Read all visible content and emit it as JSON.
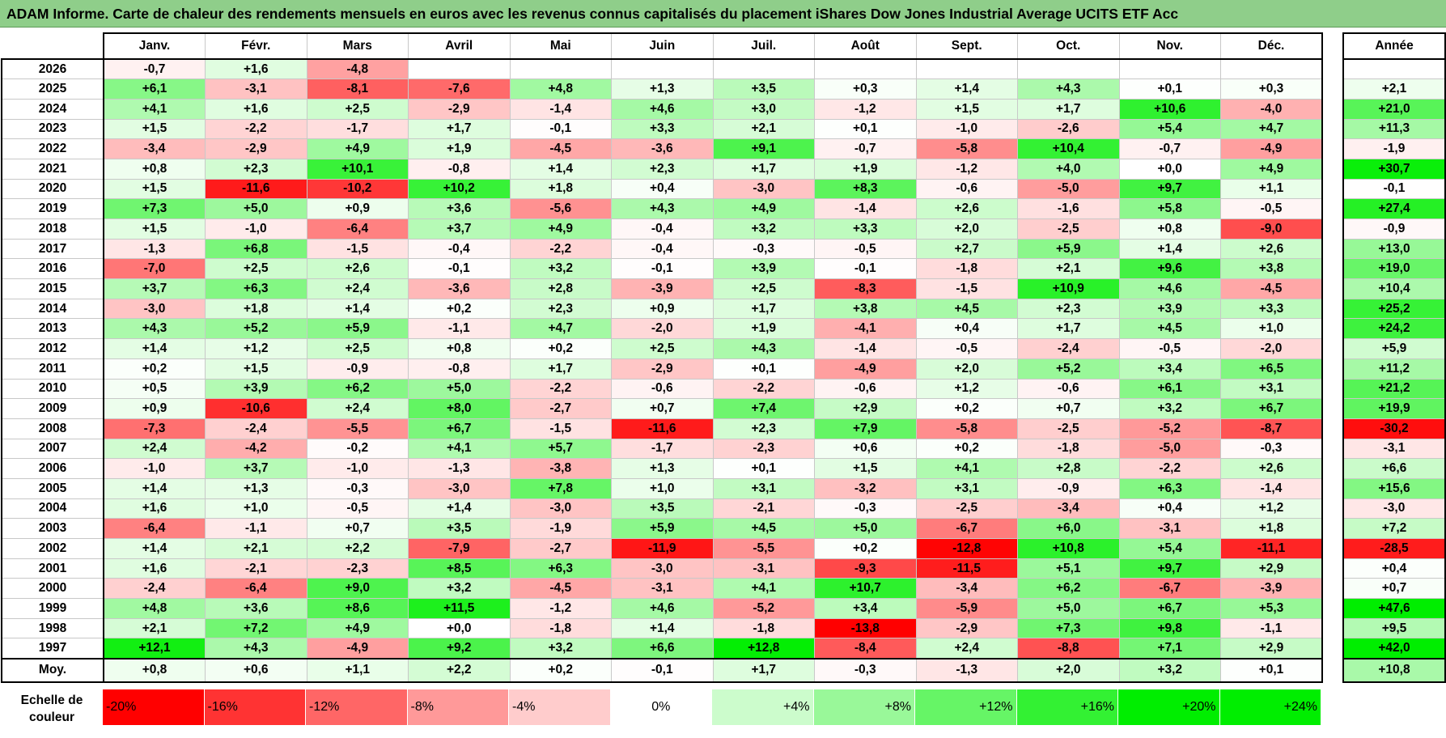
{
  "title": "ADAM Informe. Carte de chaleur des rendements mensuels en euros avec les revenus connus capitalisés du placement iShares Dow Jones Industrial Average UCITS ETF Acc",
  "colors": {
    "title_bg": "#8fce8a",
    "negative_max": "#ff0000",
    "zero": "#ffffff",
    "positive_max": "#00ee00"
  },
  "chart_data": {
    "type": "heatmap",
    "title": "ADAM Informe. Carte de chaleur des rendements mensuels en euros avec les revenus connus capitalisés du placement iShares Dow Jones Industrial Average UCITS ETF Acc",
    "columns": [
      "Janv.",
      "Févr.",
      "Mars",
      "Avril",
      "Mai",
      "Juin",
      "Juil.",
      "Août",
      "Sept.",
      "Oct.",
      "Nov.",
      "Déc."
    ],
    "year_column_label": "Année",
    "rows": [
      {
        "year": "2026",
        "months": [
          "-0,7",
          "+1,6",
          "-4,8",
          "",
          "",
          "",
          "",
          "",
          "",
          "",
          "",
          ""
        ],
        "annual": ""
      },
      {
        "year": "2025",
        "months": [
          "+6,1",
          "-3,1",
          "-8,1",
          "-7,6",
          "+4,8",
          "+1,3",
          "+3,5",
          "+0,3",
          "+1,4",
          "+4,3",
          "+0,1",
          "+0,3"
        ],
        "annual": "+2,1"
      },
      {
        "year": "2024",
        "months": [
          "+4,1",
          "+1,6",
          "+2,5",
          "-2,9",
          "-1,4",
          "+4,6",
          "+3,0",
          "-1,2",
          "+1,5",
          "+1,7",
          "+10,6",
          "-4,0"
        ],
        "annual": "+21,0"
      },
      {
        "year": "2023",
        "months": [
          "+1,5",
          "-2,2",
          "-1,7",
          "+1,7",
          "-0,1",
          "+3,3",
          "+2,1",
          "+0,1",
          "-1,0",
          "-2,6",
          "+5,4",
          "+4,7"
        ],
        "annual": "+11,3"
      },
      {
        "year": "2022",
        "months": [
          "-3,4",
          "-2,9",
          "+4,9",
          "+1,9",
          "-4,5",
          "-3,6",
          "+9,1",
          "-0,7",
          "-5,8",
          "+10,4",
          "-0,7",
          "-4,9"
        ],
        "annual": "-1,9"
      },
      {
        "year": "2021",
        "months": [
          "+0,8",
          "+2,3",
          "+10,1",
          "-0,8",
          "+1,4",
          "+2,3",
          "+1,7",
          "+1,9",
          "-1,2",
          "+4,0",
          "+0,0",
          "+4,9"
        ],
        "annual": "+30,7"
      },
      {
        "year": "2020",
        "months": [
          "+1,5",
          "-11,6",
          "-10,2",
          "+10,2",
          "+1,8",
          "+0,4",
          "-3,0",
          "+8,3",
          "-0,6",
          "-5,0",
          "+9,7",
          "+1,1"
        ],
        "annual": "-0,1"
      },
      {
        "year": "2019",
        "months": [
          "+7,3",
          "+5,0",
          "+0,9",
          "+3,6",
          "-5,6",
          "+4,3",
          "+4,9",
          "-1,4",
          "+2,6",
          "-1,6",
          "+5,8",
          "-0,5"
        ],
        "annual": "+27,4"
      },
      {
        "year": "2018",
        "months": [
          "+1,5",
          "-1,0",
          "-6,4",
          "+3,7",
          "+4,9",
          "-0,4",
          "+3,2",
          "+3,3",
          "+2,0",
          "-2,5",
          "+0,8",
          "-9,0"
        ],
        "annual": "-0,9"
      },
      {
        "year": "2017",
        "months": [
          "-1,3",
          "+6,8",
          "-1,5",
          "-0,4",
          "-2,2",
          "-0,4",
          "-0,3",
          "-0,5",
          "+2,7",
          "+5,9",
          "+1,4",
          "+2,6"
        ],
        "annual": "+13,0"
      },
      {
        "year": "2016",
        "months": [
          "-7,0",
          "+2,5",
          "+2,6",
          "-0,1",
          "+3,2",
          "-0,1",
          "+3,9",
          "-0,1",
          "-1,8",
          "+2,1",
          "+9,6",
          "+3,8"
        ],
        "annual": "+19,0"
      },
      {
        "year": "2015",
        "months": [
          "+3,7",
          "+6,3",
          "+2,4",
          "-3,6",
          "+2,8",
          "-3,9",
          "+2,5",
          "-8,3",
          "-1,5",
          "+10,9",
          "+4,6",
          "-4,5"
        ],
        "annual": "+10,4"
      },
      {
        "year": "2014",
        "months": [
          "-3,0",
          "+1,8",
          "+1,4",
          "+0,2",
          "+2,3",
          "+0,9",
          "+1,7",
          "+3,8",
          "+4,5",
          "+2,3",
          "+3,9",
          "+3,3"
        ],
        "annual": "+25,2"
      },
      {
        "year": "2013",
        "months": [
          "+4,3",
          "+5,2",
          "+5,9",
          "-1,1",
          "+4,7",
          "-2,0",
          "+1,9",
          "-4,1",
          "+0,4",
          "+1,7",
          "+4,5",
          "+1,0"
        ],
        "annual": "+24,2"
      },
      {
        "year": "2012",
        "months": [
          "+1,4",
          "+1,2",
          "+2,5",
          "+0,8",
          "+0,2",
          "+2,5",
          "+4,3",
          "-1,4",
          "-0,5",
          "-2,4",
          "-0,5",
          "-2,0"
        ],
        "annual": "+5,9"
      },
      {
        "year": "2011",
        "months": [
          "+0,2",
          "+1,5",
          "-0,9",
          "-0,8",
          "+1,7",
          "-2,9",
          "+0,1",
          "-4,9",
          "+2,0",
          "+5,2",
          "+3,4",
          "+6,5"
        ],
        "annual": "+11,2"
      },
      {
        "year": "2010",
        "months": [
          "+0,5",
          "+3,9",
          "+6,2",
          "+5,0",
          "-2,2",
          "-0,6",
          "-2,2",
          "-0,6",
          "+1,2",
          "-0,6",
          "+6,1",
          "+3,1"
        ],
        "annual": "+21,2"
      },
      {
        "year": "2009",
        "months": [
          "+0,9",
          "-10,6",
          "+2,4",
          "+8,0",
          "-2,7",
          "+0,7",
          "+7,4",
          "+2,9",
          "+0,2",
          "+0,7",
          "+3,2",
          "+6,7"
        ],
        "annual": "+19,9"
      },
      {
        "year": "2008",
        "months": [
          "-7,3",
          "-2,4",
          "-5,5",
          "+6,7",
          "-1,5",
          "-11,6",
          "+2,3",
          "+7,9",
          "-5,8",
          "-2,5",
          "-5,2",
          "-8,7"
        ],
        "annual": "-30,2"
      },
      {
        "year": "2007",
        "months": [
          "+2,4",
          "-4,2",
          "-0,2",
          "+4,1",
          "+5,7",
          "-1,7",
          "-2,3",
          "+0,6",
          "+0,2",
          "-1,8",
          "-5,0",
          "-0,3"
        ],
        "annual": "-3,1"
      },
      {
        "year": "2006",
        "months": [
          "-1,0",
          "+3,7",
          "-1,0",
          "-1,3",
          "-3,8",
          "+1,3",
          "+0,1",
          "+1,5",
          "+4,1",
          "+2,8",
          "-2,2",
          "+2,6"
        ],
        "annual": "+6,6"
      },
      {
        "year": "2005",
        "months": [
          "+1,4",
          "+1,3",
          "-0,3",
          "-3,0",
          "+7,8",
          "+1,0",
          "+3,1",
          "-3,2",
          "+3,1",
          "-0,9",
          "+6,3",
          "-1,4"
        ],
        "annual": "+15,6"
      },
      {
        "year": "2004",
        "months": [
          "+1,6",
          "+1,0",
          "-0,5",
          "+1,4",
          "-3,0",
          "+3,5",
          "-2,1",
          "-0,3",
          "-2,5",
          "-3,4",
          "+0,4",
          "+1,2"
        ],
        "annual": "-3,0"
      },
      {
        "year": "2003",
        "months": [
          "-6,4",
          "-1,1",
          "+0,7",
          "+3,5",
          "-1,9",
          "+5,9",
          "+4,5",
          "+5,0",
          "-6,7",
          "+6,0",
          "-3,1",
          "+1,8"
        ],
        "annual": "+7,2"
      },
      {
        "year": "2002",
        "months": [
          "+1,4",
          "+2,1",
          "+2,2",
          "-7,9",
          "-2,7",
          "-11,9",
          "-5,5",
          "+0,2",
          "-12,8",
          "+10,8",
          "+5,4",
          "-11,1"
        ],
        "annual": "-28,5"
      },
      {
        "year": "2001",
        "months": [
          "+1,6",
          "-2,1",
          "-2,3",
          "+8,5",
          "+6,3",
          "-3,0",
          "-3,1",
          "-9,3",
          "-11,5",
          "+5,1",
          "+9,7",
          "+2,9"
        ],
        "annual": "+0,4"
      },
      {
        "year": "2000",
        "months": [
          "-2,4",
          "-6,4",
          "+9,0",
          "+3,2",
          "-4,5",
          "-3,1",
          "+4,1",
          "+10,7",
          "-3,4",
          "+6,2",
          "-6,7",
          "-3,9"
        ],
        "annual": "+0,7"
      },
      {
        "year": "1999",
        "months": [
          "+4,8",
          "+3,6",
          "+8,6",
          "+11,5",
          "-1,2",
          "+4,6",
          "-5,2",
          "+3,4",
          "-5,9",
          "+5,0",
          "+6,7",
          "+5,3"
        ],
        "annual": "+47,6"
      },
      {
        "year": "1998",
        "months": [
          "+2,1",
          "+7,2",
          "+4,9",
          "+0,0",
          "-1,8",
          "+1,4",
          "-1,8",
          "-13,8",
          "-2,9",
          "+7,3",
          "+9,8",
          "-1,1"
        ],
        "annual": "+9,5"
      },
      {
        "year": "1997",
        "months": [
          "+12,1",
          "+4,3",
          "-4,9",
          "+9,2",
          "+3,2",
          "+6,6",
          "+12,8",
          "-8,4",
          "+2,4",
          "-8,8",
          "+7,1",
          "+2,9"
        ],
        "annual": "+42,0"
      }
    ],
    "average": {
      "label": "Moy.",
      "months": [
        "+0,8",
        "+0,6",
        "+1,1",
        "+2,2",
        "+0,2",
        "-0,1",
        "+1,7",
        "-0,3",
        "-1,3",
        "+2,0",
        "+3,2",
        "+0,1"
      ],
      "annual": "+10,8"
    },
    "scale": {
      "label_line1": "Echelle de",
      "label_line2": "couleur",
      "stops": [
        "-20%",
        "-16%",
        "-12%",
        "-8%",
        "-4%",
        "0%",
        "+4%",
        "+8%",
        "+12%",
        "+16%",
        "+20%",
        "+24%"
      ]
    }
  }
}
